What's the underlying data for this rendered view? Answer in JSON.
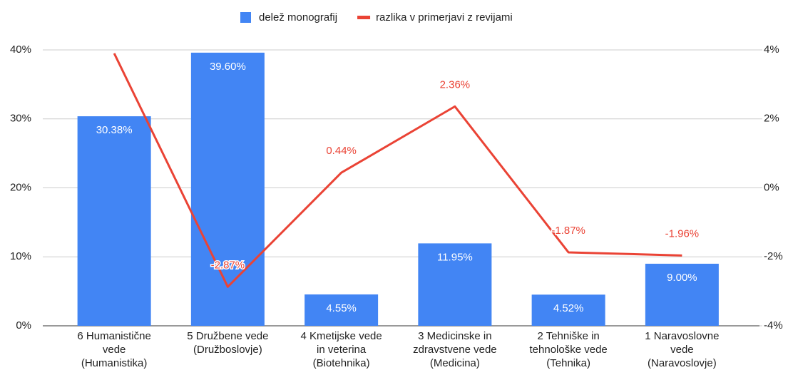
{
  "chart_data": {
    "type": "bar_line",
    "categories": [
      "6 Humanistične\nvede\n(Humanistika)",
      "5 Družbene vede\n(Družboslovje)",
      "4 Kmetijske vede\nin veterina\n(Biotehnika)",
      "3 Medicinske in\nzdravstvene vede\n(Medicina)",
      "2 Tehniške in\ntehnološke vede\n(Tehnika)",
      "1 Naravoslovne\nvede\n(Naravoslovje)"
    ],
    "series": [
      {
        "name": "delež monografij",
        "type": "bar",
        "color": "#4285f4",
        "axis": "y",
        "values": [
          30.38,
          39.6,
          4.55,
          11.95,
          4.52,
          9.0
        ],
        "value_labels": [
          "30.38%",
          "39.60%",
          "4.55%",
          "11.95%",
          "4.52%",
          "9.00%"
        ]
      },
      {
        "name": "razlika v primerjavi z revijami",
        "type": "line",
        "color": "#ea4335",
        "axis": "y2",
        "values": [
          3.9,
          -2.87,
          0.44,
          2.36,
          -1.87,
          -1.96
        ],
        "value_labels": [
          null,
          "-2.87%",
          "0.44%",
          "2.36%",
          "-1.87%",
          "-1.96%"
        ]
      }
    ],
    "ylim": [
      0,
      40
    ],
    "yticks": [
      {
        "value": 0,
        "label": "0%"
      },
      {
        "value": 10,
        "label": "10%"
      },
      {
        "value": 20,
        "label": "20%"
      },
      {
        "value": 30,
        "label": "30%"
      },
      {
        "value": 40,
        "label": "40%"
      }
    ],
    "y2lim": [
      -4,
      4
    ],
    "y2ticks": [
      {
        "value": -4,
        "label": "-4%"
      },
      {
        "value": -2,
        "label": "-2%"
      },
      {
        "value": 0,
        "label": "0%"
      },
      {
        "value": 2,
        "label": "2%"
      },
      {
        "value": 4,
        "label": "4%"
      }
    ],
    "grid": true,
    "legend": "top"
  }
}
